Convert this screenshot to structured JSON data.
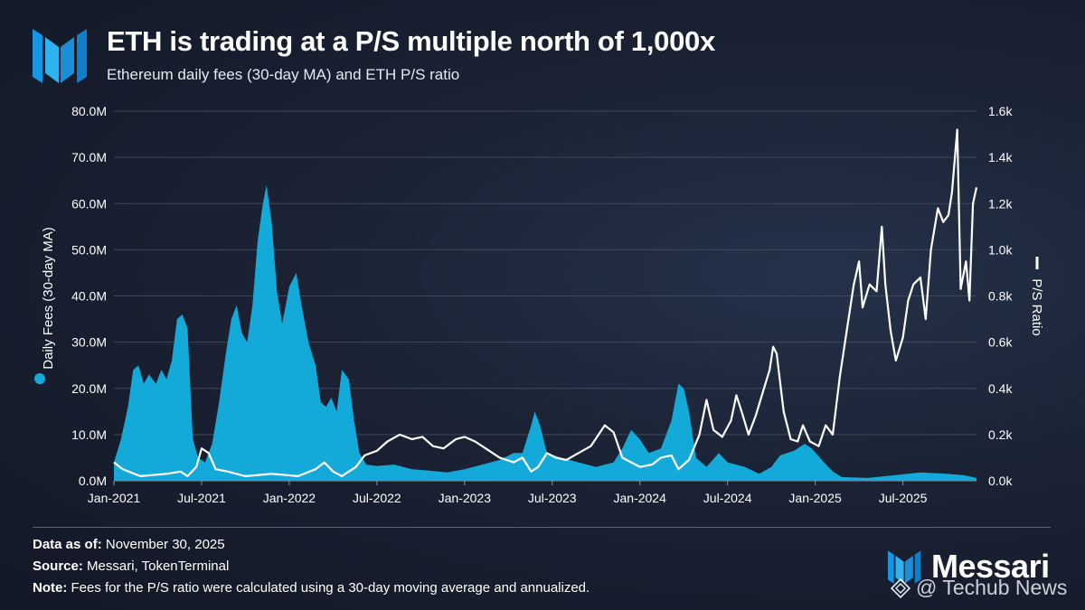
{
  "header": {
    "title": "ETH is trading at a P/S multiple north of 1,000x",
    "subtitle": "Ethereum daily fees (30-day MA) and ETH P/S ratio"
  },
  "chart_data": {
    "type": "area+line",
    "x_ticks": [
      "Jan-2021",
      "Jul-2021",
      "Jan-2022",
      "Jul-2022",
      "Jan-2023",
      "Jul-2023",
      "Jan-2024",
      "Jul-2024",
      "Jan-2025",
      "Jul-2025"
    ],
    "x_range": [
      2021.0,
      2025.92
    ],
    "y_left": {
      "label": "Daily Fees (30-day MA)",
      "range": [
        0,
        80
      ],
      "ticks": [
        "0.0M",
        "10.0M",
        "20.0M",
        "30.0M",
        "40.0M",
        "50.0M",
        "60.0M",
        "70.0M",
        "80.0M"
      ]
    },
    "y_right": {
      "label": "P/S Ratio",
      "range": [
        0,
        1.6
      ],
      "ticks": [
        "0.0k",
        "0.2k",
        "0.4k",
        "0.6k",
        "0.8k",
        "1.0k",
        "1.2k",
        "1.4k",
        "1.6k"
      ]
    },
    "series": [
      {
        "name": "Daily Fees (30-day MA)",
        "axis": "left",
        "style": "area",
        "color": "#13a9d9",
        "points": [
          [
            2021.0,
            4
          ],
          [
            2021.04,
            9
          ],
          [
            2021.08,
            16
          ],
          [
            2021.11,
            24
          ],
          [
            2021.14,
            25
          ],
          [
            2021.17,
            21
          ],
          [
            2021.2,
            23
          ],
          [
            2021.24,
            21
          ],
          [
            2021.27,
            24
          ],
          [
            2021.3,
            22
          ],
          [
            2021.33,
            26
          ],
          [
            2021.36,
            35
          ],
          [
            2021.39,
            36
          ],
          [
            2021.42,
            33
          ],
          [
            2021.45,
            9
          ],
          [
            2021.48,
            5
          ],
          [
            2021.52,
            4
          ],
          [
            2021.56,
            8
          ],
          [
            2021.6,
            17
          ],
          [
            2021.64,
            28
          ],
          [
            2021.67,
            35
          ],
          [
            2021.7,
            38
          ],
          [
            2021.73,
            32
          ],
          [
            2021.76,
            30
          ],
          [
            2021.79,
            38
          ],
          [
            2021.82,
            52
          ],
          [
            2021.85,
            60
          ],
          [
            2021.87,
            64
          ],
          [
            2021.9,
            56
          ],
          [
            2021.93,
            41
          ],
          [
            2021.96,
            34
          ],
          [
            2022.0,
            42
          ],
          [
            2022.04,
            45
          ],
          [
            2022.07,
            38
          ],
          [
            2022.11,
            30
          ],
          [
            2022.15,
            25
          ],
          [
            2022.18,
            17
          ],
          [
            2022.21,
            16
          ],
          [
            2022.24,
            18
          ],
          [
            2022.27,
            15
          ],
          [
            2022.3,
            24
          ],
          [
            2022.34,
            22
          ],
          [
            2022.37,
            13
          ],
          [
            2022.4,
            6
          ],
          [
            2022.44,
            3.5
          ],
          [
            2022.5,
            3.2
          ],
          [
            2022.6,
            3.5
          ],
          [
            2022.7,
            2.5
          ],
          [
            2022.8,
            2.2
          ],
          [
            2022.9,
            1.8
          ],
          [
            2023.0,
            2.5
          ],
          [
            2023.1,
            3.5
          ],
          [
            2023.2,
            4.5
          ],
          [
            2023.28,
            6
          ],
          [
            2023.33,
            6
          ],
          [
            2023.38,
            12
          ],
          [
            2023.4,
            15
          ],
          [
            2023.43,
            12
          ],
          [
            2023.47,
            6
          ],
          [
            2023.55,
            5
          ],
          [
            2023.65,
            4
          ],
          [
            2023.75,
            3
          ],
          [
            2023.85,
            4
          ],
          [
            2023.9,
            7
          ],
          [
            2023.95,
            11
          ],
          [
            2024.0,
            9
          ],
          [
            2024.05,
            6
          ],
          [
            2024.12,
            7
          ],
          [
            2024.18,
            13
          ],
          [
            2024.22,
            21
          ],
          [
            2024.25,
            20
          ],
          [
            2024.28,
            15
          ],
          [
            2024.32,
            5
          ],
          [
            2024.38,
            3
          ],
          [
            2024.45,
            6
          ],
          [
            2024.5,
            4
          ],
          [
            2024.6,
            3
          ],
          [
            2024.68,
            1.5
          ],
          [
            2024.75,
            3
          ],
          [
            2024.8,
            5.5
          ],
          [
            2024.88,
            6.5
          ],
          [
            2024.94,
            8
          ],
          [
            2024.98,
            7
          ],
          [
            2025.05,
            4
          ],
          [
            2025.1,
            2
          ],
          [
            2025.15,
            0.8
          ],
          [
            2025.3,
            0.6
          ],
          [
            2025.45,
            1.2
          ],
          [
            2025.6,
            1.8
          ],
          [
            2025.75,
            1.5
          ],
          [
            2025.85,
            1.2
          ],
          [
            2025.92,
            0.6
          ]
        ]
      },
      {
        "name": "P/S Ratio",
        "axis": "right",
        "style": "line",
        "color": "#ffffff",
        "points": [
          [
            2021.0,
            0.08
          ],
          [
            2021.05,
            0.05
          ],
          [
            2021.15,
            0.02
          ],
          [
            2021.3,
            0.03
          ],
          [
            2021.38,
            0.04
          ],
          [
            2021.42,
            0.02
          ],
          [
            2021.47,
            0.06
          ],
          [
            2021.5,
            0.14
          ],
          [
            2021.54,
            0.12
          ],
          [
            2021.58,
            0.05
          ],
          [
            2021.65,
            0.04
          ],
          [
            2021.75,
            0.02
          ],
          [
            2021.9,
            0.03
          ],
          [
            2022.05,
            0.02
          ],
          [
            2022.15,
            0.05
          ],
          [
            2022.2,
            0.08
          ],
          [
            2022.25,
            0.04
          ],
          [
            2022.3,
            0.02
          ],
          [
            2022.38,
            0.06
          ],
          [
            2022.43,
            0.11
          ],
          [
            2022.5,
            0.13
          ],
          [
            2022.56,
            0.17
          ],
          [
            2022.63,
            0.2
          ],
          [
            2022.7,
            0.18
          ],
          [
            2022.76,
            0.19
          ],
          [
            2022.82,
            0.15
          ],
          [
            2022.88,
            0.14
          ],
          [
            2022.95,
            0.18
          ],
          [
            2023.0,
            0.19
          ],
          [
            2023.06,
            0.17
          ],
          [
            2023.12,
            0.14
          ],
          [
            2023.2,
            0.1
          ],
          [
            2023.28,
            0.08
          ],
          [
            2023.33,
            0.1
          ],
          [
            2023.38,
            0.04
          ],
          [
            2023.42,
            0.06
          ],
          [
            2023.47,
            0.12
          ],
          [
            2023.52,
            0.1
          ],
          [
            2023.58,
            0.09
          ],
          [
            2023.65,
            0.12
          ],
          [
            2023.72,
            0.15
          ],
          [
            2023.8,
            0.24
          ],
          [
            2023.85,
            0.21
          ],
          [
            2023.9,
            0.1
          ],
          [
            2023.95,
            0.08
          ],
          [
            2024.0,
            0.06
          ],
          [
            2024.07,
            0.07
          ],
          [
            2024.12,
            0.1
          ],
          [
            2024.18,
            0.11
          ],
          [
            2024.22,
            0.05
          ],
          [
            2024.28,
            0.09
          ],
          [
            2024.34,
            0.2
          ],
          [
            2024.38,
            0.35
          ],
          [
            2024.42,
            0.22
          ],
          [
            2024.47,
            0.19
          ],
          [
            2024.52,
            0.26
          ],
          [
            2024.55,
            0.37
          ],
          [
            2024.58,
            0.3
          ],
          [
            2024.62,
            0.2
          ],
          [
            2024.66,
            0.28
          ],
          [
            2024.7,
            0.38
          ],
          [
            2024.74,
            0.48
          ],
          [
            2024.76,
            0.58
          ],
          [
            2024.78,
            0.55
          ],
          [
            2024.82,
            0.3
          ],
          [
            2024.86,
            0.18
          ],
          [
            2024.9,
            0.17
          ],
          [
            2024.93,
            0.24
          ],
          [
            2024.97,
            0.17
          ],
          [
            2025.02,
            0.15
          ],
          [
            2025.06,
            0.24
          ],
          [
            2025.1,
            0.2
          ],
          [
            2025.14,
            0.45
          ],
          [
            2025.18,
            0.65
          ],
          [
            2025.22,
            0.85
          ],
          [
            2025.25,
            0.95
          ],
          [
            2025.27,
            0.75
          ],
          [
            2025.31,
            0.85
          ],
          [
            2025.35,
            0.82
          ],
          [
            2025.38,
            1.1
          ],
          [
            2025.4,
            0.85
          ],
          [
            2025.43,
            0.65
          ],
          [
            2025.46,
            0.52
          ],
          [
            2025.5,
            0.62
          ],
          [
            2025.53,
            0.78
          ],
          [
            2025.56,
            0.85
          ],
          [
            2025.6,
            0.88
          ],
          [
            2025.63,
            0.7
          ],
          [
            2025.66,
            1.0
          ],
          [
            2025.7,
            1.18
          ],
          [
            2025.73,
            1.12
          ],
          [
            2025.76,
            1.15
          ],
          [
            2025.78,
            1.25
          ],
          [
            2025.81,
            1.52
          ],
          [
            2025.83,
            0.83
          ],
          [
            2025.86,
            0.95
          ],
          [
            2025.88,
            0.78
          ],
          [
            2025.9,
            1.2
          ],
          [
            2025.92,
            1.27
          ]
        ]
      }
    ]
  },
  "footer": {
    "data_as_of_label": "Data as of:",
    "data_as_of_value": "November 30, 2025",
    "source_label": "Source:",
    "source_value": "Messari, TokenTerminal",
    "note_label": "Note:",
    "note_value": "Fees for the P/S ratio were calculated using a 30-day moving average and annualized."
  },
  "brand": {
    "name": "Messari",
    "watermark": "@ Techub News",
    "accent": "#13a9d9"
  }
}
